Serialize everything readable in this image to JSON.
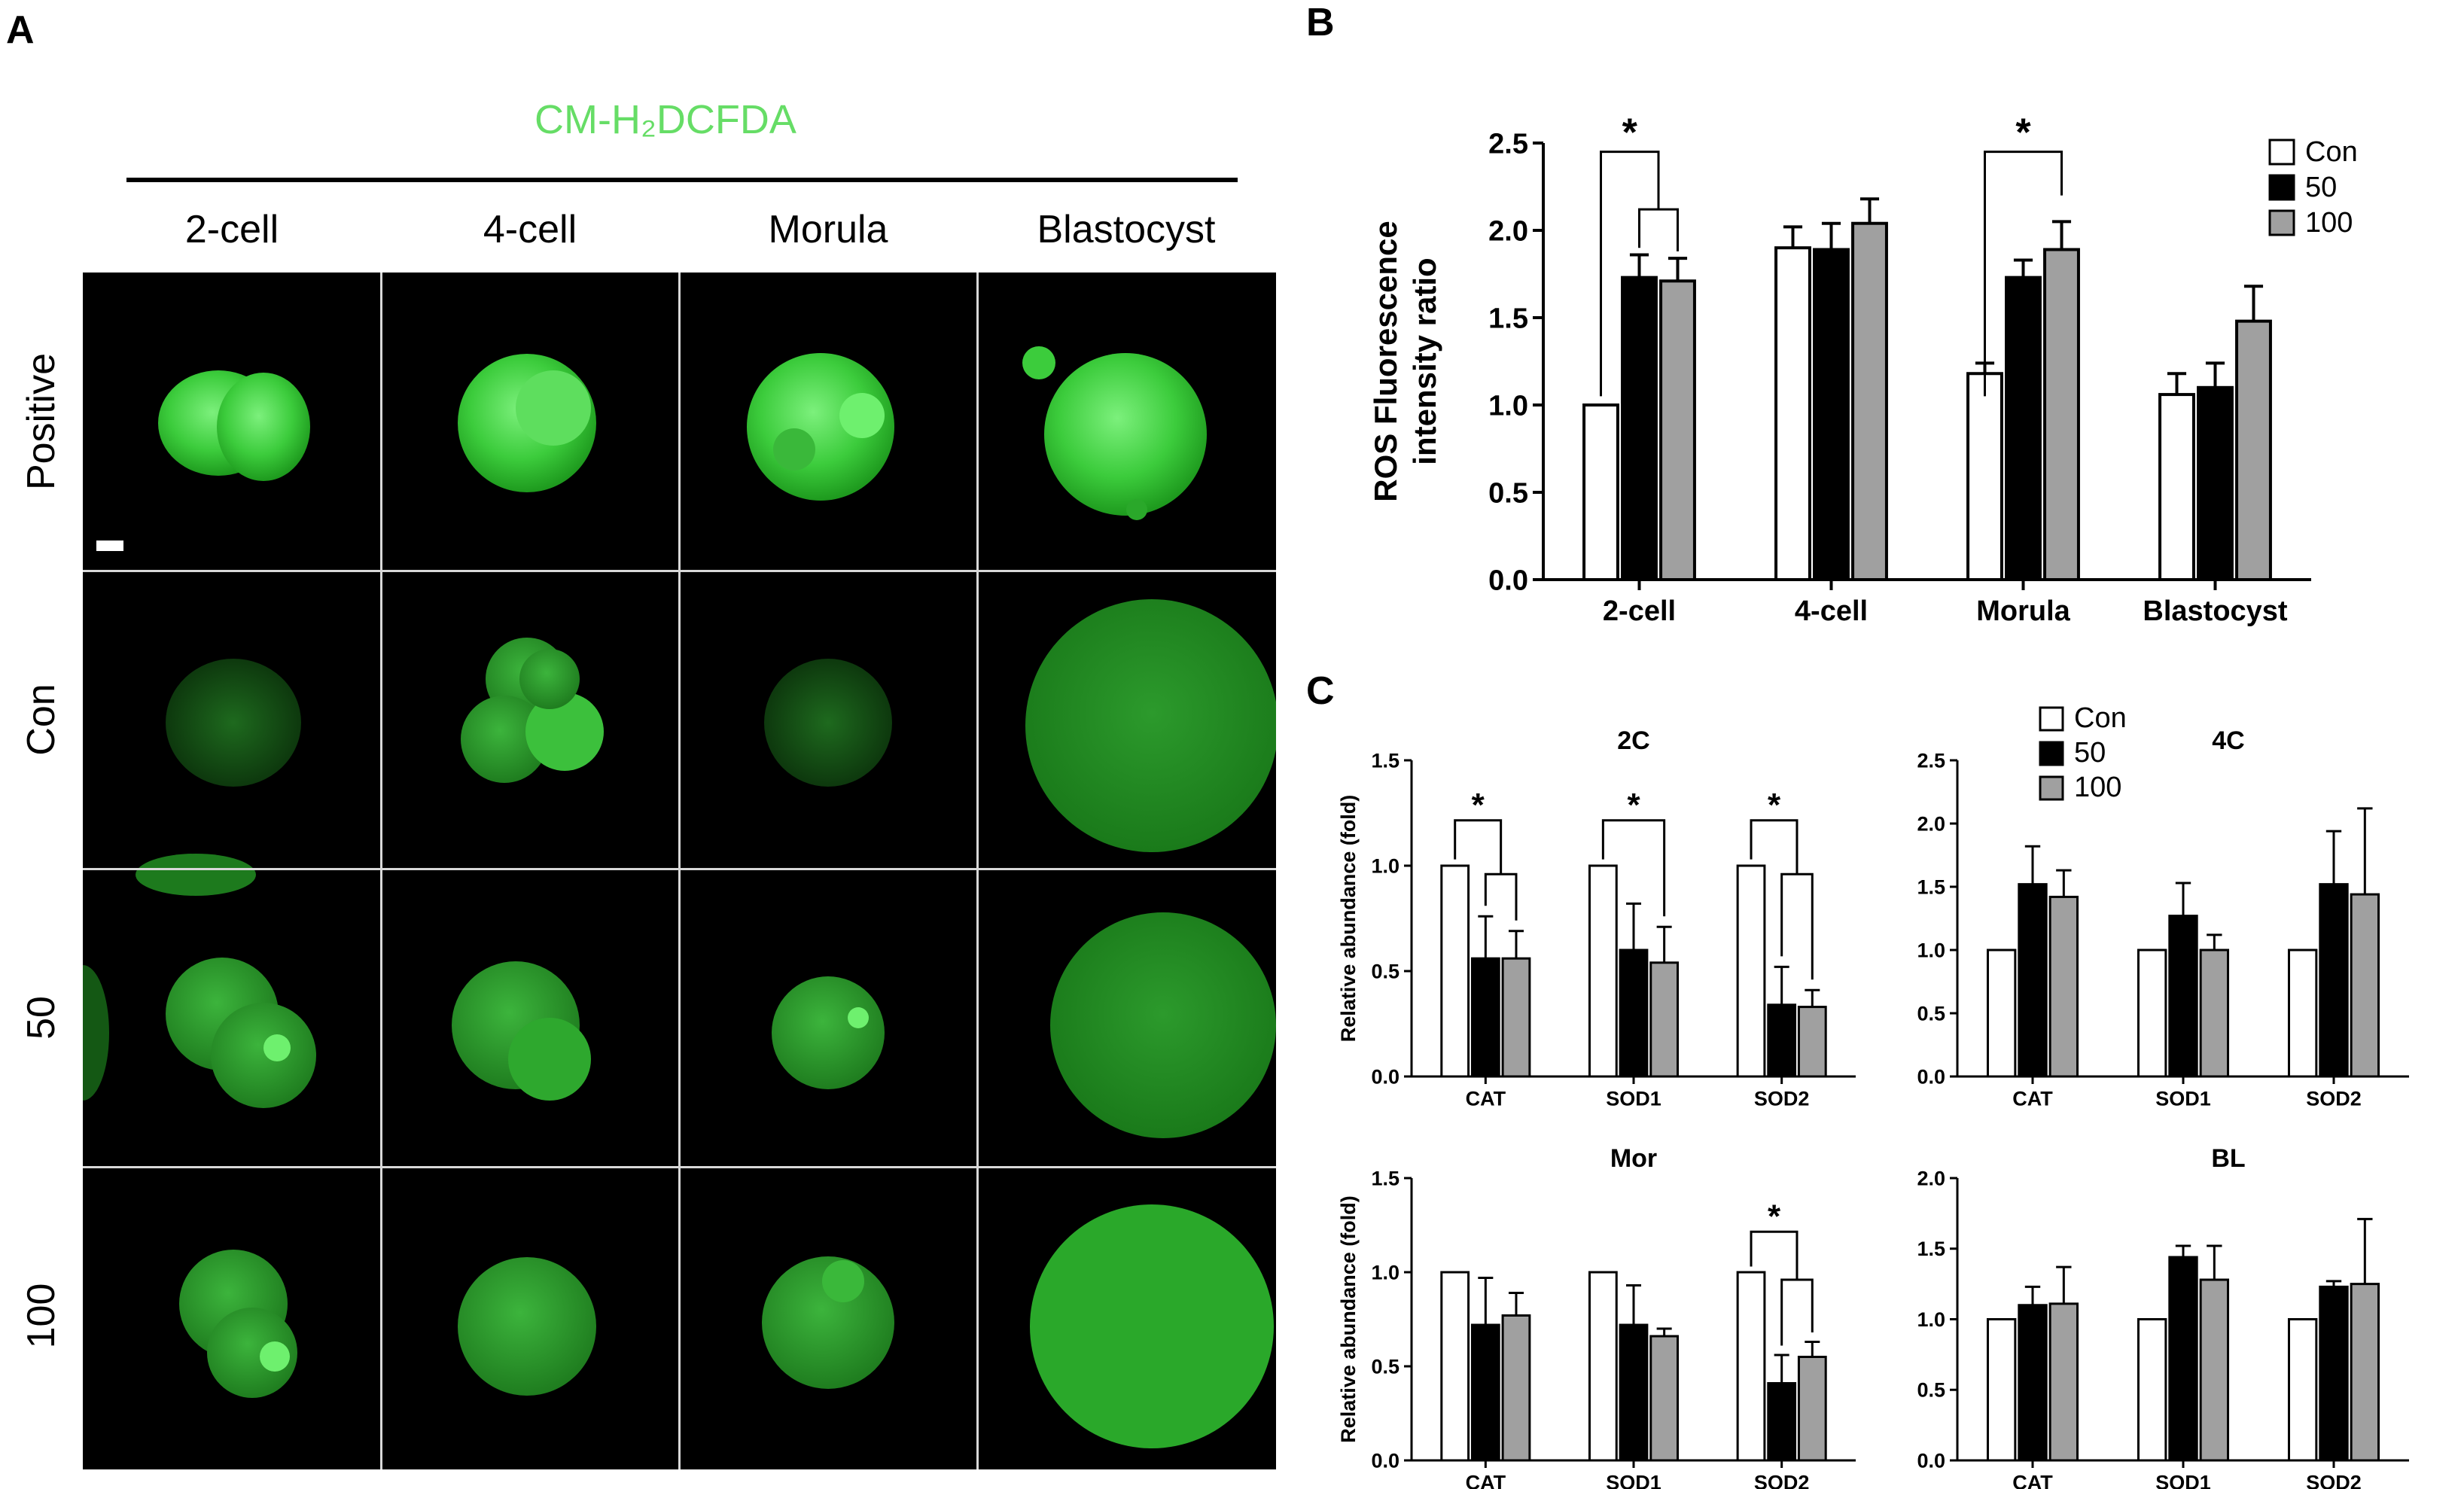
{
  "panel_a": {
    "letter": "A",
    "title": "CM-H₂DCFDA",
    "columns": [
      "2-cell",
      "4-cell",
      "Morula",
      "Blastocyst"
    ],
    "rows": [
      "Positive",
      "Con",
      "50",
      "100"
    ]
  },
  "panel_b": {
    "letter": "B",
    "chart_data": {
      "type": "bar",
      "title": "",
      "xlabel": "",
      "ylabel": "ROS Fluorescence intensity ratio",
      "ylabel_lines": [
        "ROS Fluorescence",
        "intensity ratio"
      ],
      "ylim": [
        0,
        2.5
      ],
      "yticks": [
        "0.0",
        "0.5",
        "1.0",
        "1.5",
        "2.0",
        "2.5"
      ],
      "categories": [
        "2-cell",
        "4-cell",
        "Morula",
        "Blastocyst"
      ],
      "series": [
        {
          "name": "Con",
          "values": [
            1.0,
            1.9,
            1.18,
            1.06
          ],
          "errors": [
            0.0,
            0.12,
            0.06,
            0.12
          ]
        },
        {
          "name": "50",
          "values": [
            1.73,
            1.89,
            1.73,
            1.1
          ],
          "errors": [
            0.13,
            0.15,
            0.1,
            0.14
          ]
        },
        {
          "name": "100",
          "values": [
            1.71,
            2.04,
            1.89,
            1.48
          ],
          "errors": [
            0.13,
            0.14,
            0.16,
            0.2
          ]
        }
      ],
      "legend": "top-right",
      "significance": [
        "*",
        "*"
      ]
    }
  },
  "panel_c": {
    "letter": "C",
    "legend": [
      "Con",
      "50",
      "100"
    ],
    "chart_data": [
      {
        "type": "bar",
        "title": "2C",
        "ylabel": "Relative abundance (fold)",
        "ylim": [
          0,
          1.5
        ],
        "yticks": [
          "0.0",
          "0.5",
          "1.0",
          "1.5"
        ],
        "categories": [
          "CAT",
          "SOD1",
          "SOD2"
        ],
        "series": [
          {
            "name": "Con",
            "values": [
              1.0,
              1.0,
              1.0
            ],
            "errors": [
              0,
              0,
              0
            ]
          },
          {
            "name": "50",
            "values": [
              0.56,
              0.6,
              0.34
            ],
            "errors": [
              0.2,
              0.22,
              0.18
            ]
          },
          {
            "name": "100",
            "values": [
              0.56,
              0.54,
              0.33
            ],
            "errors": [
              0.13,
              0.17,
              0.08
            ]
          }
        ],
        "significance": [
          "*",
          "*",
          "*"
        ]
      },
      {
        "type": "bar",
        "title": "4C",
        "ylabel": "",
        "ylim": [
          0,
          2.5
        ],
        "yticks": [
          "0.0",
          "0.5",
          "1.0",
          "1.5",
          "2.0",
          "2.5"
        ],
        "categories": [
          "CAT",
          "SOD1",
          "SOD2"
        ],
        "series": [
          {
            "name": "Con",
            "values": [
              1.0,
              1.0,
              1.0
            ],
            "errors": [
              0,
              0,
              0
            ]
          },
          {
            "name": "50",
            "values": [
              1.52,
              1.27,
              1.52
            ],
            "errors": [
              0.3,
              0.26,
              0.42
            ]
          },
          {
            "name": "100",
            "values": [
              1.42,
              1.0,
              1.44
            ],
            "errors": [
              0.21,
              0.12,
              0.68
            ]
          }
        ],
        "significance": []
      },
      {
        "type": "bar",
        "title": "Mor",
        "ylabel": "Relative abundance (fold)",
        "ylim": [
          0,
          1.5
        ],
        "yticks": [
          "0.0",
          "0.5",
          "1.0",
          "1.5"
        ],
        "categories": [
          "CAT",
          "SOD1",
          "SOD2"
        ],
        "series": [
          {
            "name": "Con",
            "values": [
              1.0,
              1.0,
              1.0
            ],
            "errors": [
              0,
              0,
              0
            ]
          },
          {
            "name": "50",
            "values": [
              0.72,
              0.72,
              0.41
            ],
            "errors": [
              0.25,
              0.21,
              0.15
            ]
          },
          {
            "name": "100",
            "values": [
              0.77,
              0.66,
              0.55
            ],
            "errors": [
              0.12,
              0.04,
              0.08
            ]
          }
        ],
        "significance": [
          "*"
        ]
      },
      {
        "type": "bar",
        "title": "BL",
        "ylabel": "",
        "ylim": [
          0,
          2.0
        ],
        "yticks": [
          "0.0",
          "0.5",
          "1.0",
          "1.5",
          "2.0"
        ],
        "categories": [
          "CAT",
          "SOD1",
          "SOD2"
        ],
        "series": [
          {
            "name": "Con",
            "values": [
              1.0,
              1.0,
              1.0
            ],
            "errors": [
              0,
              0,
              0
            ]
          },
          {
            "name": "50",
            "values": [
              1.1,
              1.44,
              1.23
            ],
            "errors": [
              0.13,
              0.08,
              0.04
            ]
          },
          {
            "name": "100",
            "values": [
              1.11,
              1.28,
              1.25
            ],
            "errors": [
              0.26,
              0.24,
              0.46
            ]
          }
        ],
        "significance": []
      }
    ]
  },
  "colors": {
    "con": "#ffffff",
    "s50": "#000000",
    "s100": "#a0a0a0",
    "fluor": "#38d038"
  }
}
